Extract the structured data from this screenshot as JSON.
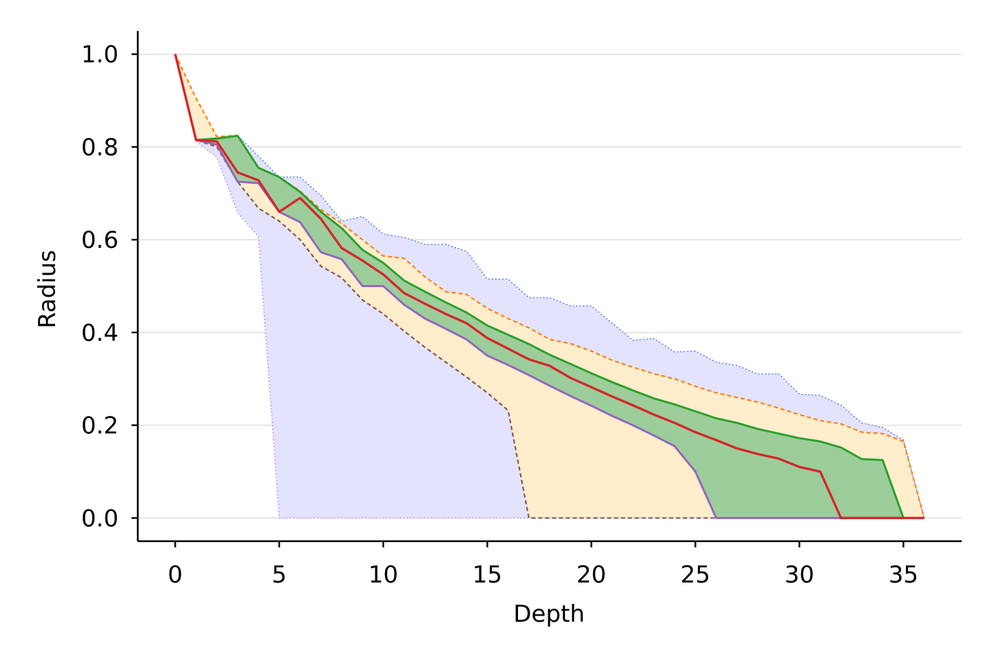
{
  "chart_data": {
    "type": "area",
    "title": "",
    "xlabel": "Depth",
    "ylabel": "Radius",
    "xlim": [
      -1.8,
      37.8
    ],
    "ylim": [
      -0.05,
      1.05
    ],
    "xticks": [
      0,
      5,
      10,
      15,
      20,
      25,
      30,
      35
    ],
    "yticks": [
      0.0,
      0.2,
      0.4,
      0.6,
      0.8,
      1.0
    ],
    "xtick_labels": [
      "0",
      "5",
      "10",
      "15",
      "20",
      "25",
      "30",
      "35"
    ],
    "ytick_labels": [
      "0.0",
      "0.2",
      "0.4",
      "0.6",
      "0.8",
      "1.0"
    ],
    "grid": "horizontal",
    "x": [
      0,
      1,
      2,
      3,
      4,
      5,
      6,
      7,
      8,
      9,
      10,
      11,
      12,
      13,
      14,
      15,
      16,
      17,
      18,
      19,
      20,
      21,
      22,
      23,
      24,
      25,
      26,
      27,
      28,
      29,
      30,
      31,
      32,
      33,
      34,
      35,
      36
    ],
    "bands": [
      {
        "fill": "#e3e3fd",
        "upper": [
          1.0,
          0.815,
          0.82,
          0.825,
          0.78,
          0.735,
          0.735,
          0.695,
          0.64,
          0.65,
          0.612,
          0.605,
          0.59,
          0.59,
          0.575,
          0.515,
          0.515,
          0.475,
          0.475,
          0.457,
          0.457,
          0.42,
          0.383,
          0.387,
          0.358,
          0.36,
          0.336,
          0.329,
          0.31,
          0.311,
          0.267,
          0.264,
          0.243,
          0.205,
          0.195,
          0.168,
          0.0
        ],
        "lower": [
          1.0,
          0.812,
          0.778,
          0.658,
          0.607,
          0.0,
          0.0,
          0.0,
          0.0,
          0.0,
          0.0,
          0.0,
          0.0,
          0.0,
          0.0,
          0.0,
          0.0,
          0.0,
          0.0,
          0.0,
          0.0,
          0.0,
          0.0,
          0.0,
          0.0,
          0.0,
          0.0,
          0.0,
          0.0,
          0.0,
          0.0,
          0.0,
          0.0,
          0.0,
          0.0,
          0.0,
          0.0
        ]
      },
      {
        "fill": "#ffedcc",
        "upper": [
          1.0,
          0.905,
          0.822,
          0.825,
          0.755,
          0.735,
          0.705,
          0.665,
          0.635,
          0.6,
          0.565,
          0.56,
          0.52,
          0.488,
          0.482,
          0.452,
          0.43,
          0.41,
          0.385,
          0.376,
          0.36,
          0.34,
          0.325,
          0.311,
          0.3,
          0.284,
          0.27,
          0.26,
          0.25,
          0.237,
          0.223,
          0.21,
          0.203,
          0.185,
          0.182,
          0.165,
          0.0
        ],
        "lower": [
          1.0,
          0.815,
          0.8,
          0.725,
          0.668,
          0.64,
          0.6,
          0.543,
          0.518,
          0.47,
          0.44,
          0.403,
          0.368,
          0.336,
          0.304,
          0.27,
          0.232,
          0.0,
          0.0,
          0.0,
          0.0,
          0.0,
          0.0,
          0.0,
          0.0,
          0.0,
          0.0,
          0.0,
          0.0,
          0.0,
          0.0,
          0.0,
          0.0,
          0.0,
          0.0,
          0.0,
          0.0
        ]
      },
      {
        "fill": "#9ccd9b",
        "upper": [
          1.0,
          0.815,
          0.818,
          0.824,
          0.755,
          0.735,
          0.703,
          0.66,
          0.625,
          0.578,
          0.55,
          0.512,
          0.488,
          0.465,
          0.443,
          0.415,
          0.395,
          0.375,
          0.352,
          0.332,
          0.312,
          0.293,
          0.275,
          0.258,
          0.245,
          0.23,
          0.215,
          0.205,
          0.192,
          0.182,
          0.172,
          0.165,
          0.152,
          0.127,
          0.125,
          0.0,
          0.0
        ],
        "lower": [
          1.0,
          0.815,
          0.805,
          0.725,
          0.722,
          0.66,
          0.638,
          0.573,
          0.558,
          0.5,
          0.5,
          0.46,
          0.43,
          0.408,
          0.385,
          0.35,
          0.33,
          0.308,
          0.285,
          0.263,
          0.242,
          0.22,
          0.2,
          0.178,
          0.155,
          0.1,
          0.0,
          0.0,
          0.0,
          0.0,
          0.0,
          0.0,
          0.0,
          0.0,
          0.0,
          0.0,
          0.0
        ]
      }
    ],
    "series": [
      {
        "color": "#4f7ef0",
        "style": "dotted",
        "width": 1.6,
        "values": [
          1.0,
          0.815,
          0.82,
          0.825,
          0.78,
          0.735,
          0.735,
          0.695,
          0.64,
          0.65,
          0.612,
          0.605,
          0.59,
          0.59,
          0.575,
          0.515,
          0.515,
          0.475,
          0.475,
          0.457,
          0.457,
          0.42,
          0.383,
          0.387,
          0.358,
          0.36,
          0.336,
          0.329,
          0.31,
          0.311,
          0.267,
          0.264,
          0.243,
          0.205,
          0.195,
          0.168,
          0.0
        ]
      },
      {
        "color": "#c98ef0",
        "style": "dotted",
        "width": 1.6,
        "values": [
          1.0,
          0.812,
          0.778,
          0.658,
          0.607,
          0.0,
          0.0,
          0.0,
          0.0,
          0.0,
          0.0,
          0.0,
          0.0,
          0.0,
          0.0,
          0.0,
          0.0,
          0.0,
          0.0,
          0.0,
          0.0,
          0.0,
          0.0,
          0.0,
          0.0,
          0.0,
          0.0,
          0.0,
          0.0,
          0.0,
          0.0,
          0.0,
          0.0,
          0.0,
          0.0,
          0.0,
          0.0
        ]
      },
      {
        "color": "#ff7f0e",
        "style": "dashed",
        "width": 2.2,
        "values": [
          1.0,
          0.905,
          0.822,
          0.825,
          0.755,
          0.735,
          0.705,
          0.665,
          0.635,
          0.6,
          0.565,
          0.56,
          0.52,
          0.488,
          0.482,
          0.452,
          0.43,
          0.41,
          0.385,
          0.376,
          0.36,
          0.34,
          0.325,
          0.311,
          0.3,
          0.284,
          0.27,
          0.26,
          0.25,
          0.237,
          0.223,
          0.21,
          0.203,
          0.185,
          0.182,
          0.165,
          0.0
        ]
      },
      {
        "color": "#8c564b",
        "style": "dashed",
        "width": 2.2,
        "values": [
          1.0,
          0.815,
          0.8,
          0.725,
          0.668,
          0.64,
          0.6,
          0.543,
          0.518,
          0.47,
          0.44,
          0.403,
          0.368,
          0.336,
          0.304,
          0.27,
          0.232,
          0.0,
          0.0,
          0.0,
          0.0,
          0.0,
          0.0,
          0.0,
          0.0,
          0.0,
          0.0,
          0.0,
          0.0,
          0.0,
          0.0,
          0.0,
          0.0,
          0.0,
          0.0,
          0.0,
          0.0
        ]
      },
      {
        "color": "#2ca02c",
        "style": "solid",
        "width": 3.0,
        "values": [
          1.0,
          0.815,
          0.818,
          0.824,
          0.755,
          0.735,
          0.703,
          0.66,
          0.625,
          0.578,
          0.55,
          0.512,
          0.488,
          0.465,
          0.443,
          0.415,
          0.395,
          0.375,
          0.352,
          0.332,
          0.312,
          0.293,
          0.275,
          0.258,
          0.245,
          0.23,
          0.215,
          0.205,
          0.192,
          0.182,
          0.172,
          0.165,
          0.152,
          0.127,
          0.125,
          0.0,
          0.0
        ]
      },
      {
        "color": "#9467bd",
        "style": "solid",
        "width": 3.0,
        "values": [
          1.0,
          0.815,
          0.805,
          0.725,
          0.722,
          0.66,
          0.638,
          0.573,
          0.558,
          0.5,
          0.5,
          0.46,
          0.43,
          0.408,
          0.385,
          0.35,
          0.33,
          0.308,
          0.285,
          0.263,
          0.242,
          0.22,
          0.2,
          0.178,
          0.155,
          0.1,
          0.0,
          0.0,
          0.0,
          0.0,
          0.0,
          0.0,
          0.0,
          0.0,
          0.0,
          0.0,
          0.0
        ]
      },
      {
        "color": "#d62728",
        "style": "solid",
        "width": 3.4,
        "values": [
          1.0,
          0.815,
          0.812,
          0.745,
          0.728,
          0.66,
          0.69,
          0.645,
          0.582,
          0.555,
          0.525,
          0.485,
          0.462,
          0.44,
          0.42,
          0.388,
          0.365,
          0.342,
          0.328,
          0.302,
          0.282,
          0.262,
          0.243,
          0.223,
          0.205,
          0.185,
          0.168,
          0.15,
          0.138,
          0.128,
          0.11,
          0.1,
          0.0,
          0.0,
          0.0,
          0.0,
          0.0
        ]
      }
    ]
  }
}
